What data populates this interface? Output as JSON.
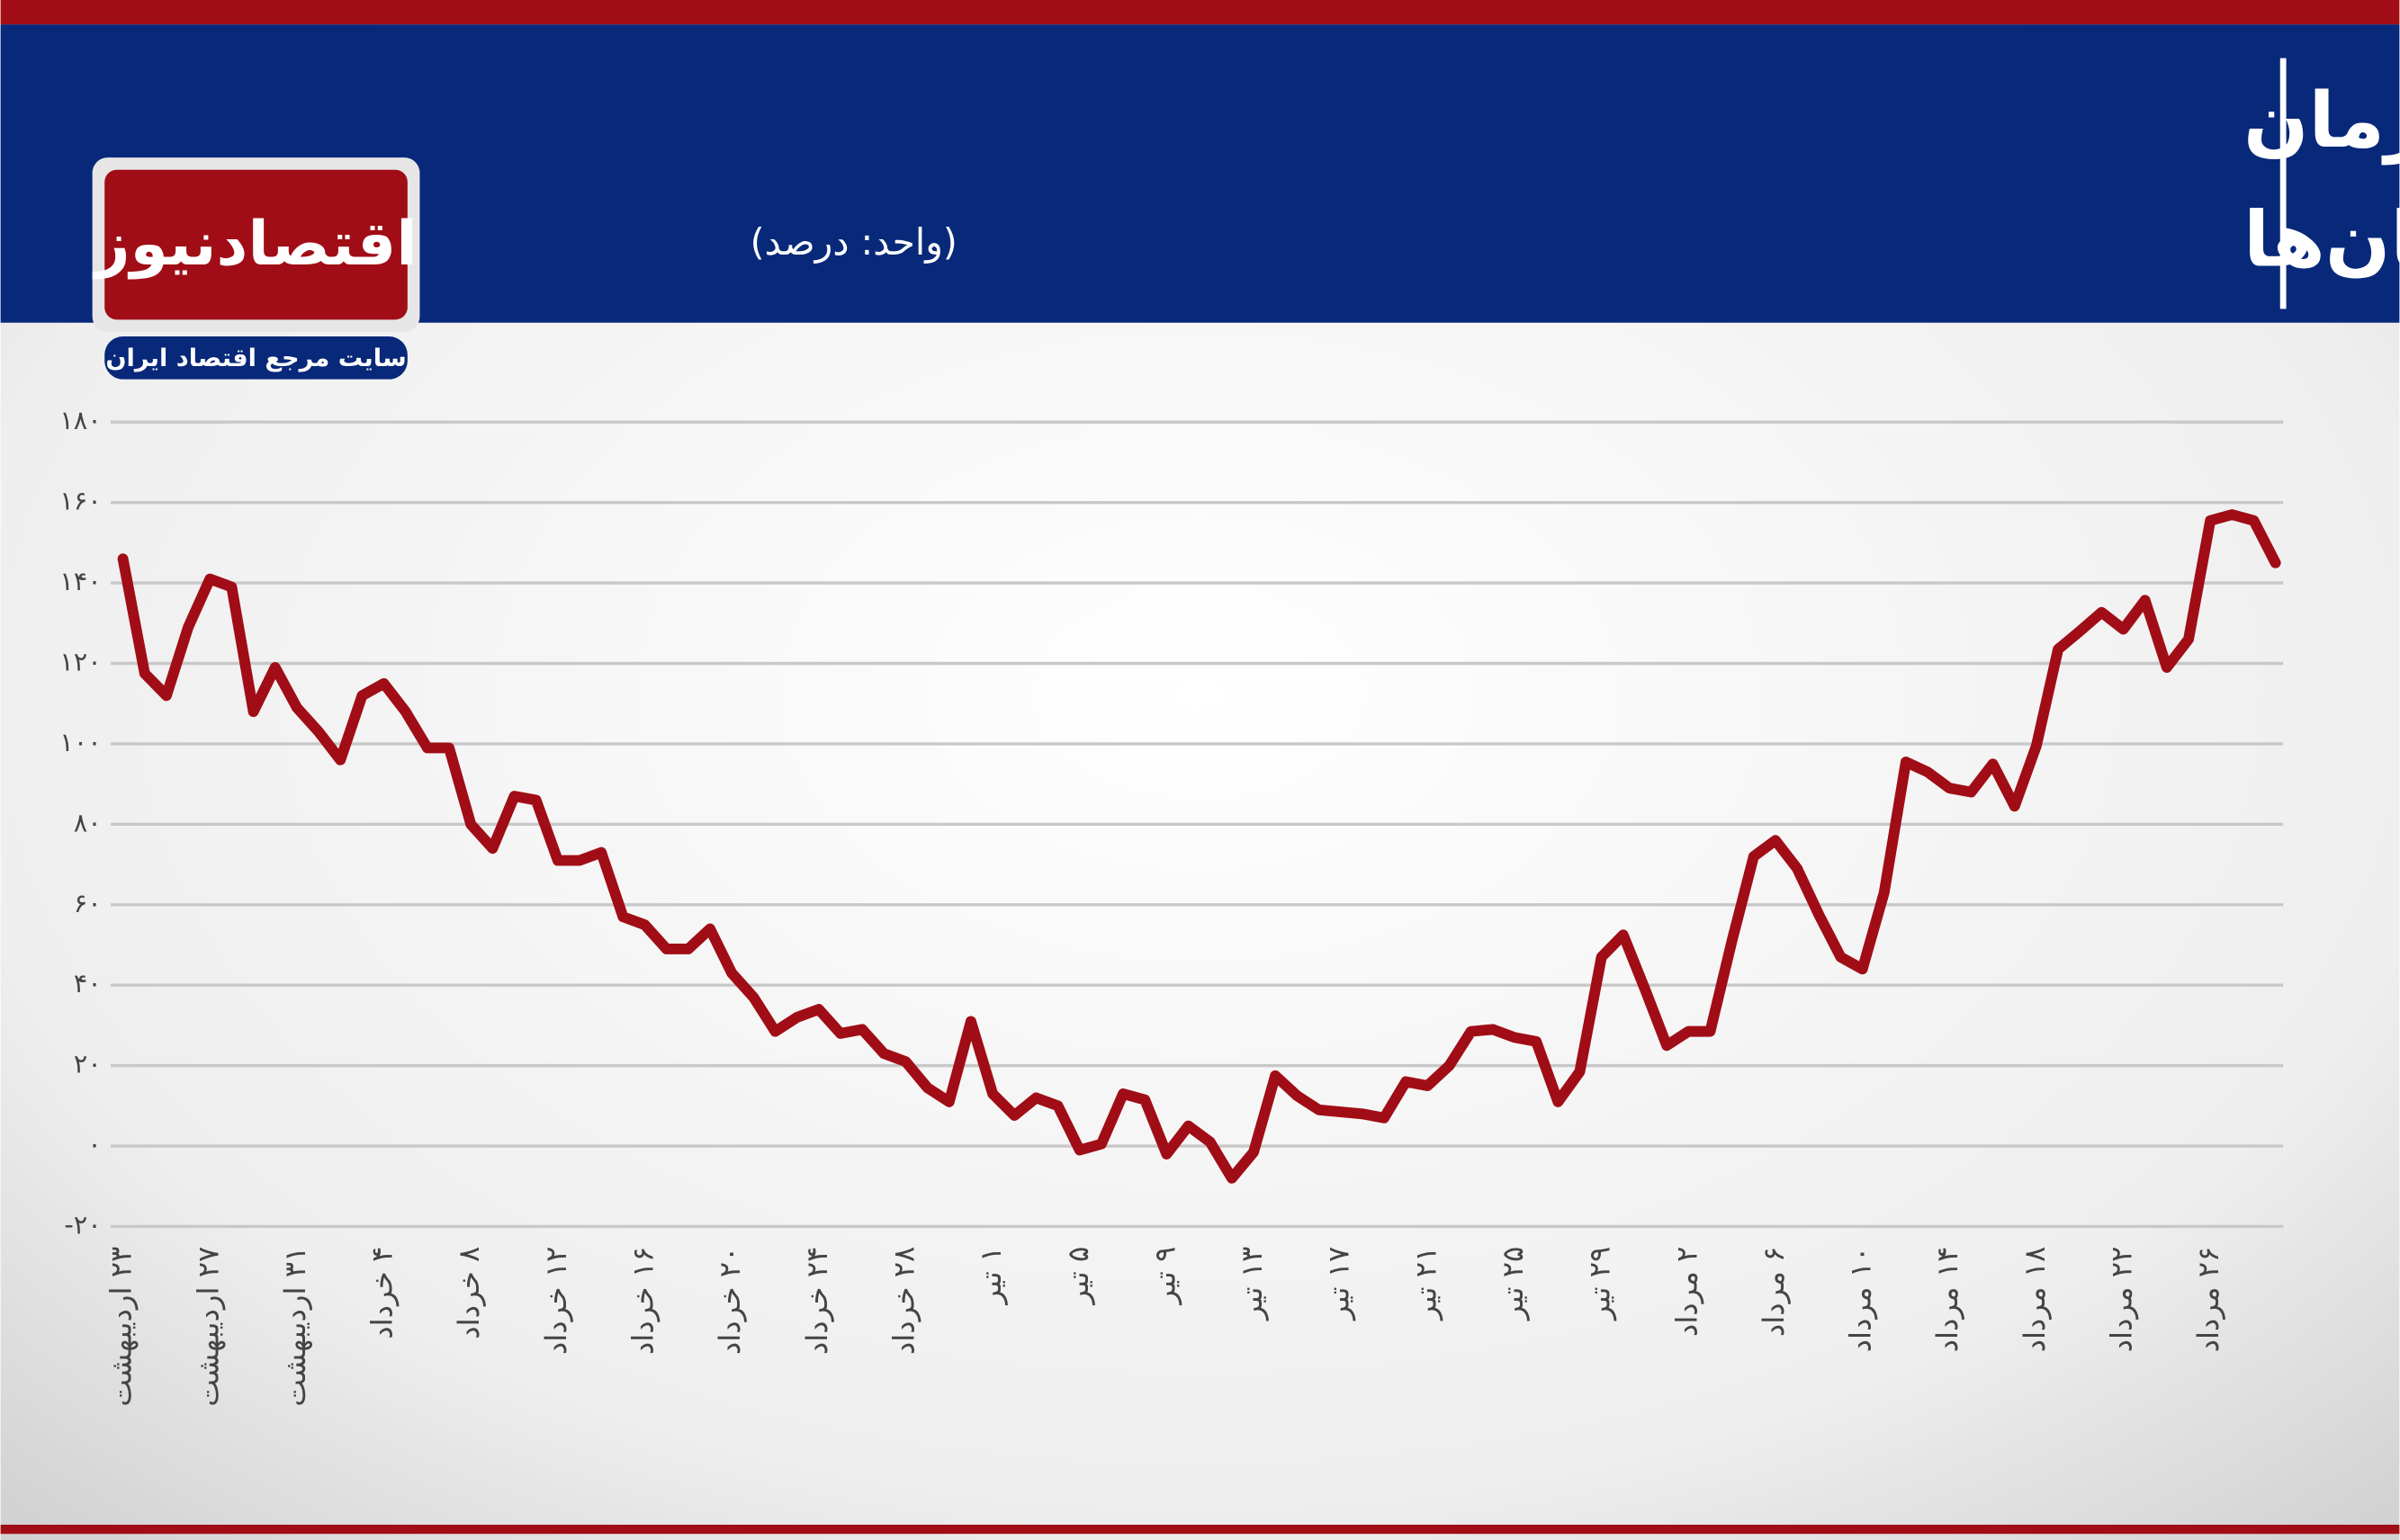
{
  "logo": {
    "name": "اقتصادنیوز",
    "tagline": "سایت مرجع اقتصاد ایران"
  },
  "chart_data": {
    "type": "line",
    "title_lines": [
      "رشد سالانه فشار بر کادر درمان",
      "بیمارستان‌ها"
    ],
    "unit": "(واحد: درصد)",
    "color": "#a10d16",
    "grid": true,
    "ylim": [
      -20,
      180
    ],
    "yticks": [
      {
        "value": -20,
        "label": "-۲۰"
      },
      {
        "value": 0,
        "label": "۰"
      },
      {
        "value": 20,
        "label": "۲۰"
      },
      {
        "value": 40,
        "label": "۴۰"
      },
      {
        "value": 60,
        "label": "۶۰"
      },
      {
        "value": 80,
        "label": "۸۰"
      },
      {
        "value": 100,
        "label": "۱۰۰"
      },
      {
        "value": 120,
        "label": "۱۲۰"
      },
      {
        "value": 140,
        "label": "۱۴۰"
      },
      {
        "value": 160,
        "label": "۱۶۰"
      },
      {
        "value": 180,
        "label": "۱۸۰"
      }
    ],
    "categories": [
      "۲۳ اردیبهشت",
      null,
      null,
      null,
      "۲۷ اردیبهشت",
      null,
      null,
      null,
      "۳۱ اردیبهشت",
      null,
      null,
      null,
      "۴ خرداد",
      null,
      null,
      null,
      "۸ خرداد",
      null,
      null,
      null,
      "۱۲ خرداد",
      null,
      null,
      null,
      "۱۶ خرداد",
      null,
      null,
      null,
      "۲۰ خرداد",
      null,
      null,
      null,
      "۲۴ خرداد",
      null,
      null,
      null,
      "۲۸ خرداد",
      null,
      null,
      null,
      "۱ تیر",
      null,
      null,
      null,
      "۵ تیر",
      null,
      null,
      null,
      "۹ تیر",
      null,
      null,
      null,
      "۱۳ تیر",
      null,
      null,
      null,
      "۱۷ تیر",
      null,
      null,
      null,
      "۲۱ تیر",
      null,
      null,
      null,
      "۲۵ تیر",
      null,
      null,
      null,
      "۲۹ تیر",
      null,
      null,
      null,
      "۲ مرداد",
      null,
      null,
      null,
      "۶ مرداد",
      null,
      null,
      null,
      "۱۰ مرداد",
      null,
      null,
      null,
      "۱۴ مرداد",
      null,
      null,
      null,
      "۱۸ مرداد",
      null,
      null,
      null,
      "۲۲ مرداد",
      null,
      null,
      null,
      "۲۶ مرداد",
      null,
      null,
      null
    ],
    "values": [
      146,
      117.5,
      112,
      129,
      141,
      139,
      108,
      119,
      109,
      103,
      96,
      112,
      115,
      108,
      99,
      99,
      80,
      74,
      87,
      86,
      71,
      71,
      73,
      57,
      55,
      49,
      49,
      54,
      43,
      37,
      28.5,
      32,
      34,
      28,
      29,
      23,
      21,
      14.5,
      11,
      31,
      13,
      7.6,
      12,
      10,
      -1,
      0.5,
      13,
      11.5,
      -2,
      5,
      1,
      -8,
      -1.5,
      17.5,
      12.5,
      9,
      8.5,
      8,
      7,
      16,
      15,
      20,
      28.5,
      29,
      27,
      26,
      11,
      18.5,
      47,
      52.5,
      39,
      25,
      28.5,
      28.5,
      51,
      72,
      76,
      69,
      57.5,
      47,
      44,
      63,
      95.5,
      93,
      89,
      88,
      95,
      84.5,
      99.5,
      123.5,
      128,
      132.7,
      128.5,
      135.7,
      119,
      126,
      155.5,
      157,
      155.5,
      145
    ]
  }
}
